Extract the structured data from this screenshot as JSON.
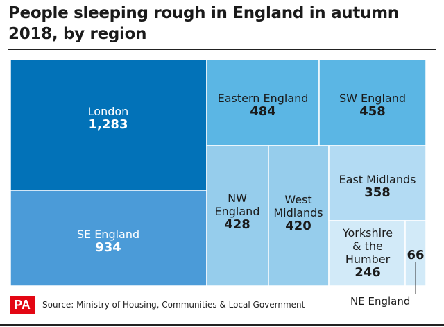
{
  "title": "People sleeping rough in England in autumn 2018, by region",
  "source": "Source: Ministry of Housing, Communities & Local Government",
  "logo_text": "PA",
  "callout_label": "NE England",
  "colors": {
    "London": "#0272b8",
    "SE England": "#4b9bd8",
    "Eastern England": "#5bb6e4",
    "SW England": "#5bb6e4",
    "NW England": "#96cdec",
    "West Midlands": "#96cdec",
    "East Midlands": "#b3dbf3",
    "Yorkshire & the Humber": "#d2eaf8",
    "NE England": "#d2eaf8"
  },
  "chart_data": {
    "type": "treemap",
    "title": "People sleeping rough in England in autumn 2018, by region",
    "value_format": "thousands-comma",
    "series": [
      {
        "name": "London",
        "value": 1283,
        "label_lines": [
          "London"
        ]
      },
      {
        "name": "SE England",
        "value": 934,
        "label_lines": [
          "SE England"
        ]
      },
      {
        "name": "Eastern England",
        "value": 484,
        "label_lines": [
          "Eastern England"
        ]
      },
      {
        "name": "SW England",
        "value": 458,
        "label_lines": [
          "SW England"
        ]
      },
      {
        "name": "NW England",
        "value": 428,
        "label_lines": [
          "NW",
          "England"
        ]
      },
      {
        "name": "West Midlands",
        "value": 420,
        "label_lines": [
          "West",
          "Midlands"
        ]
      },
      {
        "name": "East Midlands",
        "value": 358,
        "label_lines": [
          "East Midlands"
        ]
      },
      {
        "name": "Yorkshire & the Humber",
        "value": 246,
        "label_lines": [
          "Yorkshire",
          "& the",
          "Humber"
        ]
      },
      {
        "name": "NE England",
        "value": 66,
        "label_lines": []
      }
    ]
  }
}
